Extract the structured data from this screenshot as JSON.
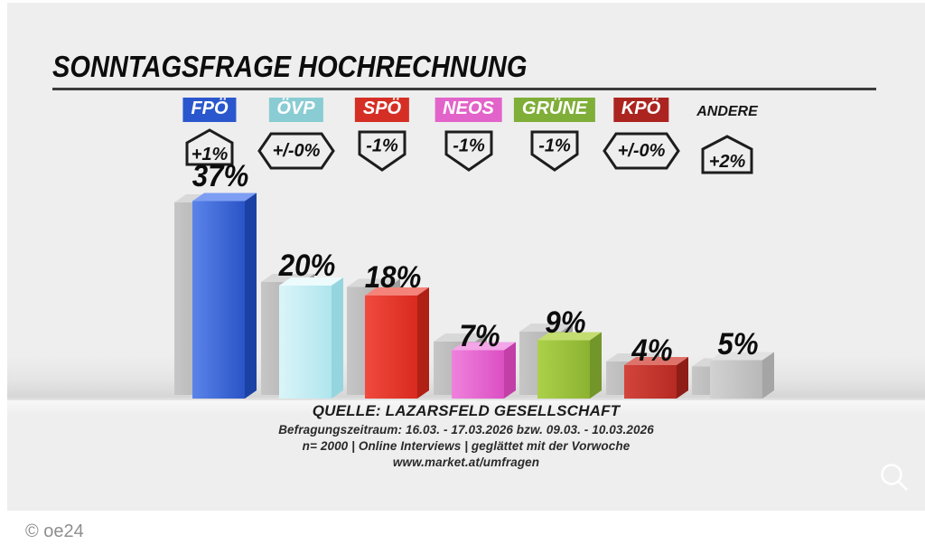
{
  "header": {
    "title": "SONNTAGSFRAGE HOCHRECHNUNG"
  },
  "chart_data": {
    "type": "bar",
    "title": "SONNTAGSFRAGE HOCHRECHNUNG",
    "unit": "%",
    "grid": false,
    "legend_position": "none",
    "categories": [
      "FPÖ",
      "ÖVP",
      "SPÖ",
      "NEOS",
      "GRÜNE",
      "KPÖ",
      "ANDERE"
    ],
    "values": [
      37,
      20,
      18,
      7,
      9,
      4,
      5
    ],
    "value_labels": [
      "37%",
      "20%",
      "18%",
      "7%",
      "9%",
      "4%",
      "5%"
    ],
    "changes": [
      "+1%",
      "+/-0%",
      "-1%",
      "-1%",
      "-1%",
      "+/-0%",
      "+2%"
    ],
    "trends": [
      "up",
      "zero",
      "down",
      "down",
      "down",
      "zero",
      "up"
    ],
    "previous_week_values": [
      36,
      20,
      19,
      8,
      10,
      4,
      3
    ],
    "previous_bar_colors": {
      "front1": "#c6c6c6",
      "front2": "#b0b0b0",
      "top": "#d8d8d8",
      "side": "#9e9e9e"
    },
    "parties": [
      {
        "name": "FPÖ",
        "value": 37,
        "value_label": "37%",
        "change": "+1%",
        "trend": "up",
        "prev": 36,
        "label_bg": "#2a57cd",
        "bar": {
          "front1": "#5b84ea",
          "front2": "#2a54c6",
          "top": "#7d9ef2",
          "side": "#1b41a4"
        }
      },
      {
        "name": "ÖVP",
        "value": 20,
        "value_label": "20%",
        "change": "+/-0%",
        "trend": "zero",
        "prev": 20,
        "label_bg": "#8accd3",
        "bar": {
          "front1": "#daf5f9",
          "front2": "#b0e5ed",
          "top": "#edfbfd",
          "side": "#95d5df"
        }
      },
      {
        "name": "SPÖ",
        "value": 18,
        "value_label": "18%",
        "change": "-1%",
        "trend": "down",
        "prev": 19,
        "label_bg": "#d52f25",
        "bar": {
          "front1": "#f04a3e",
          "front2": "#d92a1e",
          "top": "#f4837a",
          "side": "#b02014"
        }
      },
      {
        "name": "NEOS",
        "value": 7,
        "value_label": "7%",
        "change": "-1%",
        "trend": "down",
        "prev": 8,
        "label_bg": "#e263c9",
        "bar": {
          "front1": "#ee82dc",
          "front2": "#dc4fc4",
          "top": "#f3a6e8",
          "side": "#c23fa8"
        }
      },
      {
        "name": "GRÜNE",
        "value": 9,
        "value_label": "9%",
        "change": "-1%",
        "trend": "down",
        "prev": 10,
        "label_bg": "#7fae39",
        "bar": {
          "front1": "#abd14a",
          "front2": "#8cb232",
          "top": "#c3dd70",
          "side": "#73962a"
        }
      },
      {
        "name": "KPÖ",
        "value": 4,
        "value_label": "4%",
        "change": "+/-0%",
        "trend": "zero",
        "prev": 4,
        "label_bg": "#ab241f",
        "bar": {
          "front1": "#d2453c",
          "front2": "#b52a22",
          "top": "#de736b",
          "side": "#8f1d17"
        }
      },
      {
        "name": "ANDERE",
        "value": 5,
        "value_label": "5%",
        "change": "+2%",
        "trend": "up",
        "prev": 3,
        "label_bg": null,
        "bar": {
          "front1": "#d2d2d2",
          "front2": "#b8b8b8",
          "top": "#e2e2e2",
          "side": "#a5a5a5"
        }
      }
    ],
    "source": {
      "line1": "QUELLE: LAZARSFELD GESELLSCHAFT",
      "line2": "Befragungszeitraum:  16.03. - 17.03.2026  bzw. 09.03. - 10.03.2026",
      "line3": "n= 2000 | Online Interviews | geglättet mit der Vorwoche",
      "line4": "www.market.at/umfragen"
    }
  },
  "icons": {
    "zoom": "magnifier"
  },
  "footer": {
    "credit": "© oe24"
  },
  "colors": {
    "figure_bg": "#eeeeee",
    "badge_border": "#1d1d1d",
    "title_rule": "#3c3c3c"
  }
}
